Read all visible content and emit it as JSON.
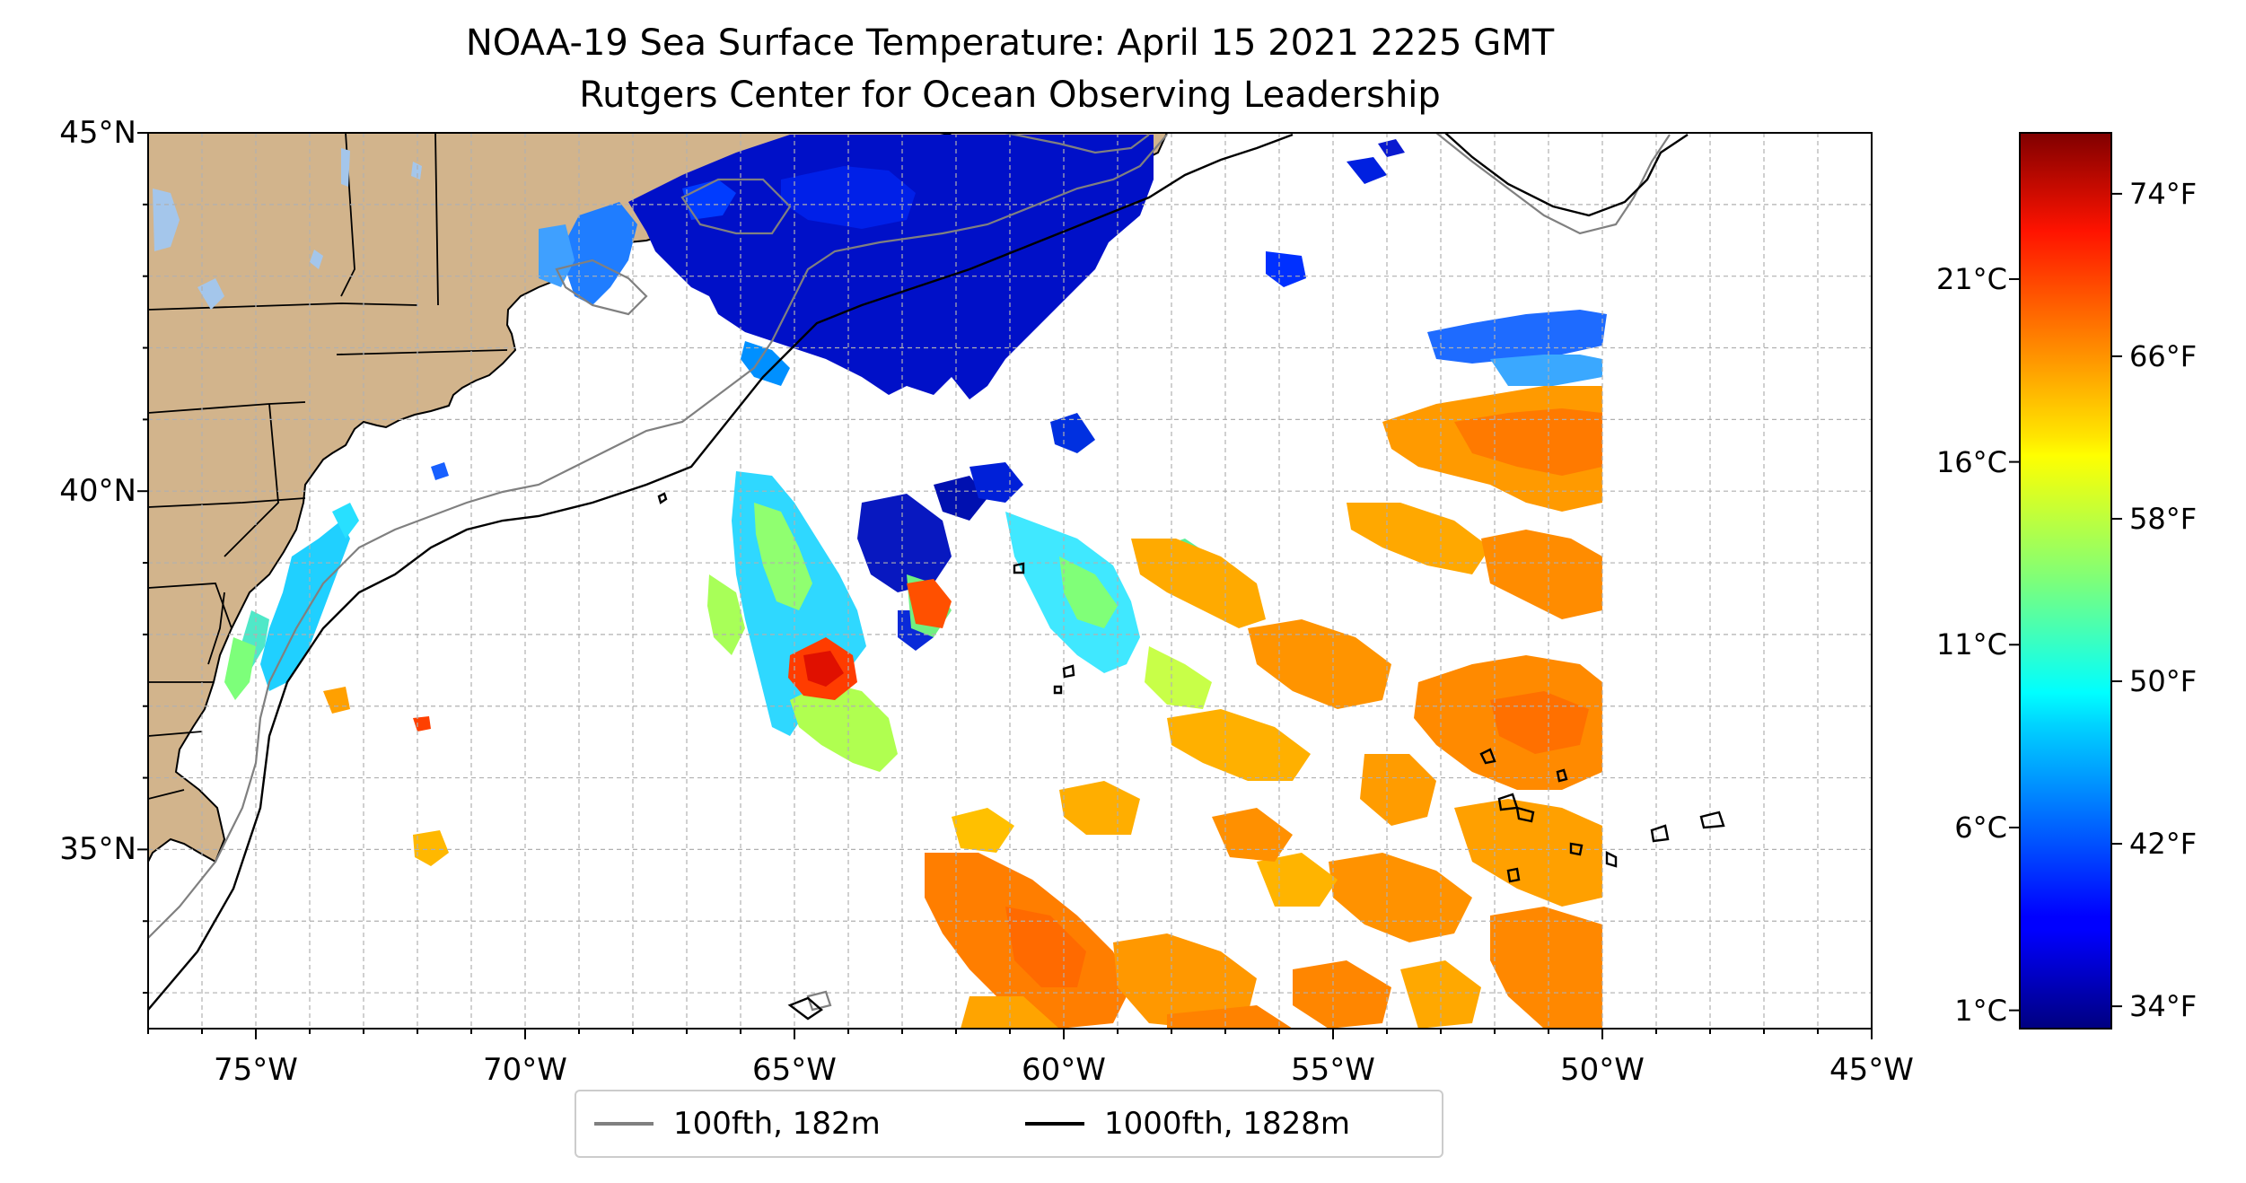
{
  "title": "NOAA-19 Sea Surface Temperature: April 15 2021 2225 GMT",
  "subtitle": "Rutgers Center for Ocean Observing Leadership",
  "map": {
    "lon_range": [
      -77,
      -45
    ],
    "lat_range": [
      32.5,
      45
    ],
    "lon_ticks": [
      {
        "value": -75,
        "label": "75°W"
      },
      {
        "value": -70,
        "label": "70°W"
      },
      {
        "value": -65,
        "label": "65°W"
      },
      {
        "value": -60,
        "label": "60°W"
      },
      {
        "value": -55,
        "label": "55°W"
      },
      {
        "value": -50,
        "label": "50°W"
      },
      {
        "value": -45,
        "label": "45°W"
      }
    ],
    "lat_ticks": [
      {
        "value": 45,
        "label": "45°N"
      },
      {
        "value": 40,
        "label": "40°N"
      },
      {
        "value": 35,
        "label": "35°N"
      }
    ],
    "gridlines": "dashed, 1 degree",
    "colors": {
      "land": "#d2b48c",
      "lakes": "#a4c6eb",
      "grid": "#b0b0b0",
      "isobath_100fth": "#808080",
      "isobath_1000fth": "#000000"
    }
  },
  "legend": {
    "placement": "bottom-center",
    "items": [
      {
        "label": "100fth, 182m",
        "color": "#808080"
      },
      {
        "label": "1000fth, 1828m",
        "color": "#000000"
      }
    ]
  },
  "colorbar": {
    "colormap": "jet",
    "range_celsius": [
      0.5,
      25
    ],
    "celsius_ticks": [
      {
        "value": 1,
        "label": "1°C"
      },
      {
        "value": 6,
        "label": "6°C"
      },
      {
        "value": 11,
        "label": "11°C"
      },
      {
        "value": 16,
        "label": "16°C"
      },
      {
        "value": 21,
        "label": "21°C"
      }
    ],
    "fahrenheit_ticks": [
      {
        "value": 34,
        "label": "34°F"
      },
      {
        "value": 42,
        "label": "42°F"
      },
      {
        "value": 50,
        "label": "50°F"
      },
      {
        "value": 58,
        "label": "58°F"
      },
      {
        "value": 66,
        "label": "66°F"
      },
      {
        "value": 74,
        "label": "74°F"
      }
    ]
  }
}
